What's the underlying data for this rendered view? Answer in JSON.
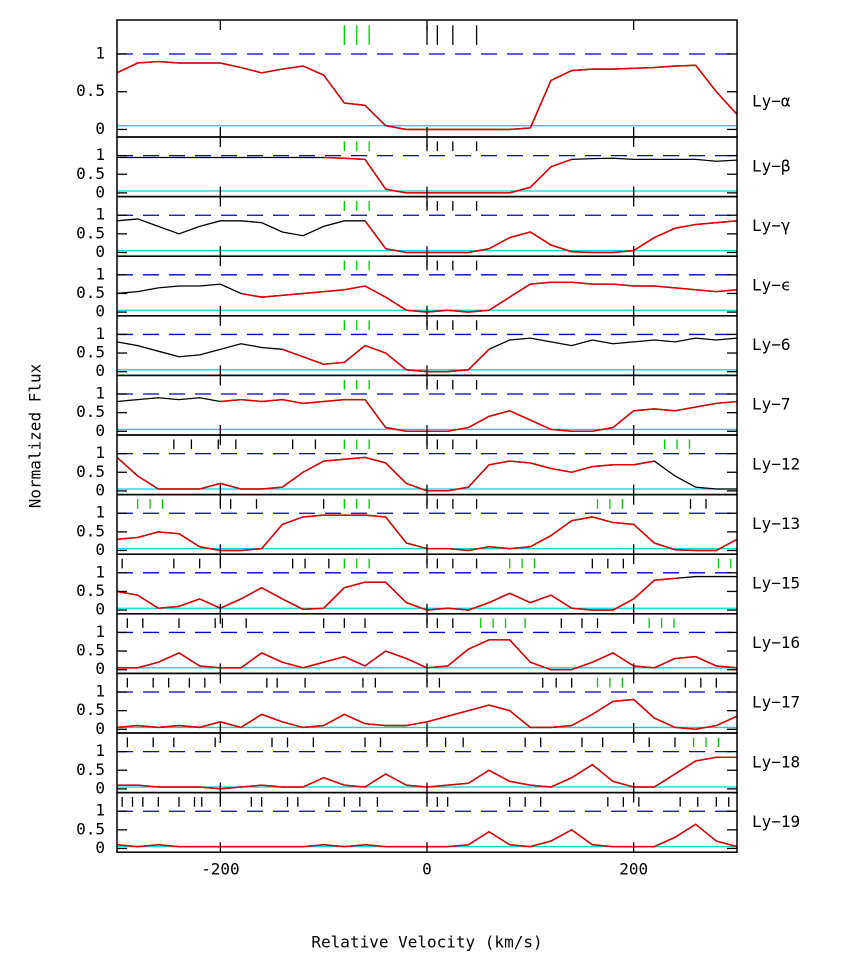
{
  "chart_data": {
    "type": "line",
    "xlabel": "Relative Velocity (km/s)",
    "ylabel": "Normalized Flux",
    "x": [
      -300,
      -280,
      -260,
      -240,
      -220,
      -200,
      -180,
      -160,
      -140,
      -120,
      -100,
      -80,
      -60,
      -40,
      -20,
      0,
      20,
      40,
      60,
      80,
      100,
      120,
      140,
      160,
      180,
      200,
      220,
      240,
      260,
      280,
      300
    ],
    "xlim": [
      -300,
      300
    ],
    "xticks": [
      -200,
      0,
      200
    ],
    "yticks": [
      0,
      0.5,
      1
    ],
    "continuum": 1,
    "error_level": 0.05,
    "colors": {
      "data": "#000000",
      "model": "#e00000",
      "error": "#00d8d8",
      "continuum": "#0000cc",
      "green": "#00cc00",
      "black": "#000000"
    },
    "panels": [
      {
        "label": "Ly−α",
        "ylim": [
          -0.1,
          1.45
        ],
        "fit_range": [
          -300,
          300
        ],
        "green": [
          -80,
          -68,
          -56
        ],
        "black": [
          0,
          10,
          25,
          48
        ],
        "values": [
          0.75,
          0.88,
          0.9,
          0.88,
          0.88,
          0.88,
          0.82,
          0.75,
          0.8,
          0.84,
          0.72,
          0.35,
          0.32,
          0.05,
          0,
          0,
          0,
          0,
          0,
          0,
          0.02,
          0.65,
          0.78,
          0.8,
          0.8,
          0.81,
          0.82,
          0.84,
          0.85,
          0.5,
          0.2
        ]
      },
      {
        "label": "Ly−β",
        "ylim": [
          -0.1,
          1.5
        ],
        "fit_range": [
          -100,
          140
        ],
        "green": [
          -80,
          -68,
          -56
        ],
        "black": [
          0,
          10,
          25,
          48
        ],
        "values": [
          0.95,
          0.95,
          0.95,
          0.95,
          0.95,
          0.95,
          0.95,
          0.95,
          0.95,
          0.95,
          0.95,
          0.93,
          0.9,
          0.1,
          0,
          0,
          0,
          0,
          0,
          0,
          0.15,
          0.7,
          0.9,
          0.92,
          0.93,
          0.9,
          0.9,
          0.9,
          0.9,
          0.85,
          0.88
        ]
      },
      {
        "label": "Ly−γ",
        "ylim": [
          -0.1,
          1.5
        ],
        "fit_range": [
          -60,
          300
        ],
        "green": [
          -80,
          -68,
          -56
        ],
        "black": [
          0,
          10,
          25,
          48
        ],
        "values": [
          0.85,
          0.9,
          0.7,
          0.5,
          0.7,
          0.85,
          0.85,
          0.8,
          0.55,
          0.45,
          0.7,
          0.85,
          0.85,
          0.1,
          0,
          0,
          0,
          0,
          0.1,
          0.4,
          0.55,
          0.2,
          0.02,
          0,
          0,
          0.05,
          0.4,
          0.65,
          0.75,
          0.8,
          0.85
        ]
      },
      {
        "label": "Ly−ϵ",
        "ylim": [
          -0.1,
          1.5
        ],
        "fit_range": [
          -180,
          300
        ],
        "green": [
          -80,
          -68,
          -56
        ],
        "black": [
          0,
          10,
          25,
          48
        ],
        "values": [
          0.5,
          0.55,
          0.65,
          0.7,
          0.7,
          0.75,
          0.5,
          0.4,
          0.45,
          0.5,
          0.55,
          0.6,
          0.7,
          0.4,
          0.05,
          0,
          0.05,
          0,
          0.05,
          0.4,
          0.75,
          0.8,
          0.8,
          0.75,
          0.75,
          0.7,
          0.7,
          0.65,
          0.6,
          0.55,
          0.6
        ]
      },
      {
        "label": "Ly−6",
        "ylim": [
          -0.1,
          1.5
        ],
        "fit_range": [
          -140,
          60
        ],
        "green": [
          -80,
          -68,
          -56
        ],
        "black": [
          0,
          10,
          25,
          48
        ],
        "values": [
          0.8,
          0.7,
          0.55,
          0.4,
          0.45,
          0.6,
          0.75,
          0.65,
          0.6,
          0.4,
          0.2,
          0.25,
          0.7,
          0.5,
          0.05,
          0,
          0,
          0.05,
          0.6,
          0.85,
          0.9,
          0.8,
          0.7,
          0.85,
          0.75,
          0.8,
          0.85,
          0.8,
          0.9,
          0.85,
          0.9
        ]
      },
      {
        "label": "Ly−7",
        "ylim": [
          -0.1,
          1.5
        ],
        "fit_range": [
          -200,
          300
        ],
        "green": [
          -80,
          -68,
          -56
        ],
        "black": [
          0,
          10,
          25,
          48
        ],
        "values": [
          0.8,
          0.85,
          0.9,
          0.85,
          0.9,
          0.8,
          0.85,
          0.8,
          0.85,
          0.75,
          0.8,
          0.85,
          0.85,
          0.1,
          0,
          0,
          0,
          0.1,
          0.4,
          0.55,
          0.3,
          0.05,
          0,
          0,
          0.1,
          0.55,
          0.6,
          0.55,
          0.65,
          0.75,
          0.8
        ]
      },
      {
        "label": "Ly−12",
        "ylim": [
          -0.1,
          1.5
        ],
        "fit_range": [
          -300,
          220
        ],
        "green": [
          -80,
          -68,
          -56,
          230,
          242,
          254
        ],
        "black": [
          -245,
          -228,
          -202,
          -185,
          -130,
          -108,
          0,
          10,
          25,
          48
        ],
        "values": [
          0.9,
          0.4,
          0.05,
          0.05,
          0.05,
          0.2,
          0.05,
          0.05,
          0.1,
          0.5,
          0.8,
          0.85,
          0.9,
          0.75,
          0.2,
          0,
          0,
          0.1,
          0.7,
          0.8,
          0.75,
          0.6,
          0.5,
          0.65,
          0.7,
          0.7,
          0.8,
          0.4,
          0.1,
          0.05,
          0.05
        ]
      },
      {
        "label": "Ly−13",
        "ylim": [
          -0.1,
          1.5
        ],
        "fit_range": [
          -300,
          300
        ],
        "green": [
          -280,
          -268,
          -256,
          -80,
          -68,
          -56,
          165,
          177,
          189
        ],
        "black": [
          -200,
          -190,
          -165,
          -100,
          0,
          10,
          25,
          48,
          255,
          270
        ],
        "values": [
          0.3,
          0.35,
          0.5,
          0.45,
          0.1,
          0,
          0,
          0.05,
          0.7,
          0.9,
          0.95,
          0.95,
          0.95,
          0.9,
          0.2,
          0.05,
          0.05,
          0,
          0.1,
          0.05,
          0.1,
          0.4,
          0.8,
          0.9,
          0.75,
          0.7,
          0.2,
          0.02,
          0,
          0,
          0.3
        ]
      },
      {
        "label": "Ly−15",
        "ylim": [
          -0.1,
          1.5
        ],
        "fit_range": [
          -300,
          240
        ],
        "green": [
          -80,
          -68,
          -56,
          80,
          92,
          104,
          282,
          294
        ],
        "black": [
          -295,
          -245,
          -220,
          -200,
          -130,
          -118,
          -95,
          0,
          10,
          25,
          48,
          160,
          175,
          190
        ],
        "values": [
          0.5,
          0.4,
          0.05,
          0.1,
          0.3,
          0.05,
          0.3,
          0.6,
          0.3,
          0.02,
          0.05,
          0.6,
          0.75,
          0.75,
          0.2,
          0,
          0.05,
          0,
          0.2,
          0.45,
          0.2,
          0.4,
          0.05,
          0,
          0,
          0.3,
          0.8,
          0.85,
          0.9,
          0.9,
          0.9
        ]
      },
      {
        "label": "Ly−16",
        "ylim": [
          -0.1,
          1.5
        ],
        "fit_range": [
          -300,
          300
        ],
        "green": [
          52,
          64,
          76,
          95,
          215,
          227,
          239
        ],
        "black": [
          -290,
          -275,
          -240,
          -205,
          -198,
          -175,
          -100,
          -80,
          -60,
          0,
          10,
          25,
          130,
          150,
          165
        ],
        "values": [
          0.05,
          0.05,
          0.2,
          0.45,
          0.1,
          0.05,
          0.05,
          0.45,
          0.2,
          0.05,
          0.2,
          0.35,
          0.1,
          0.5,
          0.3,
          0.05,
          0.1,
          0.55,
          0.8,
          0.8,
          0.2,
          0,
          0,
          0.2,
          0.45,
          0.1,
          0.05,
          0.3,
          0.35,
          0.1,
          0.05
        ]
      },
      {
        "label": "Ly−17",
        "ylim": [
          -0.1,
          1.5
        ],
        "fit_range": [
          -300,
          300
        ],
        "green": [
          165,
          177,
          189
        ],
        "black": [
          -290,
          -265,
          -250,
          -230,
          -215,
          -155,
          -145,
          -118,
          -62,
          -50,
          0,
          12,
          112,
          125,
          140,
          250,
          265,
          280
        ],
        "values": [
          0.05,
          0.1,
          0.05,
          0.1,
          0.05,
          0.2,
          0.05,
          0.4,
          0.2,
          0.05,
          0.1,
          0.4,
          0.15,
          0.1,
          0.1,
          0.2,
          0.35,
          0.5,
          0.65,
          0.5,
          0.05,
          0.05,
          0.1,
          0.4,
          0.75,
          0.8,
          0.3,
          0.05,
          0,
          0.1,
          0.35
        ]
      },
      {
        "label": "Ly−18",
        "ylim": [
          -0.1,
          1.5
        ],
        "fit_range": [
          -300,
          300
        ],
        "green": [
          258,
          270,
          282
        ],
        "black": [
          -290,
          -265,
          -245,
          -205,
          -150,
          -135,
          -110,
          -60,
          -45,
          0,
          18,
          35,
          95,
          110,
          150,
          170,
          215,
          240
        ],
        "values": [
          0.1,
          0.1,
          0.05,
          0.05,
          0.05,
          0,
          0.05,
          0.1,
          0.05,
          0.05,
          0.3,
          0.1,
          0.05,
          0.4,
          0.1,
          0.05,
          0.1,
          0.15,
          0.5,
          0.2,
          0.1,
          0.05,
          0.3,
          0.65,
          0.2,
          0.05,
          0.05,
          0.4,
          0.75,
          0.85,
          0.85
        ]
      },
      {
        "label": "Ly−19",
        "ylim": [
          -0.1,
          1.5
        ],
        "fit_range": [
          -300,
          300
        ],
        "green": [],
        "black": [
          -295,
          -285,
          -275,
          -260,
          -240,
          -225,
          -218,
          -200,
          -170,
          -160,
          -135,
          -125,
          -95,
          -80,
          -65,
          -48,
          0,
          10,
          20,
          80,
          95,
          110,
          175,
          190,
          205,
          245,
          262,
          280,
          292
        ],
        "values": [
          0.1,
          0.05,
          0.1,
          0.05,
          0.05,
          0.05,
          0.05,
          0.05,
          0.05,
          0.05,
          0.1,
          0.05,
          0.1,
          0.05,
          0.05,
          0.05,
          0.05,
          0.1,
          0.45,
          0.1,
          0.05,
          0.2,
          0.5,
          0.1,
          0.05,
          0.05,
          0.05,
          0.3,
          0.65,
          0.2,
          0.05
        ]
      }
    ]
  }
}
